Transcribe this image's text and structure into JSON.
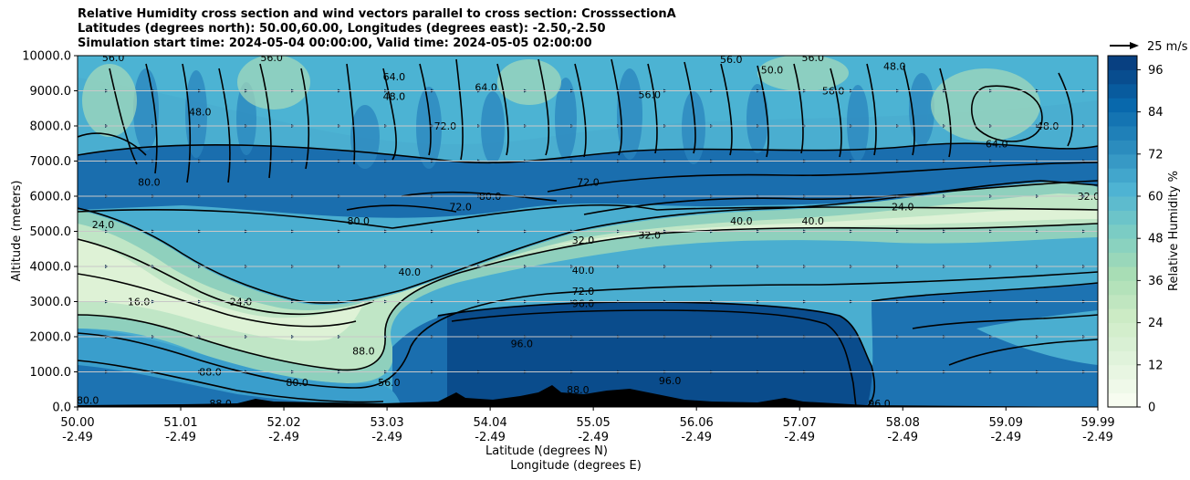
{
  "chart_data": {
    "type": "contour",
    "title_lines": [
      "Relative Humidity cross section and wind vectors parallel to cross section: CrosssectionA",
      "Latitudes (degrees north): 50.00,60.00, Longitudes (degrees east): -2.50,-2.50",
      "Simulation start time: 2024-05-04 00:00:00, Valid time: 2024-05-05 02:00:00"
    ],
    "ylabel": "Altitude (meters)",
    "xlabel_lat": "Latitude (degrees N)",
    "xlabel_lon": "Longitude (degrees E)",
    "ylim": [
      0,
      10000
    ],
    "yticks": [
      "0.0",
      "1000.0",
      "2000.0",
      "3000.0",
      "4000.0",
      "5000.0",
      "6000.0",
      "7000.0",
      "8000.0",
      "9000.0",
      "10000.0"
    ],
    "xticks_lat": [
      "50.00",
      "51.01",
      "52.02",
      "53.03",
      "54.04",
      "55.05",
      "56.06",
      "57.07",
      "58.08",
      "59.09",
      "59.99"
    ],
    "xticks_lon": [
      "-2.49",
      "-2.49",
      "-2.49",
      "-2.49",
      "-2.49",
      "-2.49",
      "-2.49",
      "-2.49",
      "-2.49",
      "-2.49",
      "-2.49"
    ],
    "colorbar_label": "Relative Humidity %",
    "colorbar_ticks": [
      "0",
      "12",
      "24",
      "36",
      "48",
      "60",
      "72",
      "84",
      "96"
    ],
    "colorbar_range": [
      0,
      100
    ],
    "quiver_key": "25 m/s",
    "contour_labels": [
      {
        "text": "56.0",
        "lat": 50.35,
        "alt": 9950
      },
      {
        "text": "56.0",
        "lat": 51.9,
        "alt": 9950
      },
      {
        "text": "64.0",
        "lat": 53.1,
        "alt": 9400
      },
      {
        "text": "64.0",
        "lat": 54.0,
        "alt": 9100
      },
      {
        "text": "48.0",
        "lat": 53.1,
        "alt": 8850
      },
      {
        "text": "72.0",
        "lat": 53.6,
        "alt": 8000
      },
      {
        "text": "56.0",
        "lat": 55.6,
        "alt": 8900
      },
      {
        "text": "56.0",
        "lat": 56.4,
        "alt": 9900
      },
      {
        "text": "50.0",
        "lat": 56.8,
        "alt": 9600
      },
      {
        "text": "56.0",
        "lat": 57.2,
        "alt": 9950
      },
      {
        "text": "56.0",
        "lat": 57.4,
        "alt": 9000
      },
      {
        "text": "48.0",
        "lat": 58.0,
        "alt": 9700
      },
      {
        "text": "48.0",
        "lat": 59.5,
        "alt": 8000
      },
      {
        "text": "64.0",
        "lat": 59.0,
        "alt": 7500
      },
      {
        "text": "48.0",
        "lat": 51.2,
        "alt": 8400
      },
      {
        "text": "80.0",
        "lat": 50.7,
        "alt": 6400
      },
      {
        "text": "80.0",
        "lat": 54.04,
        "alt": 6000
      },
      {
        "text": "72.0",
        "lat": 53.75,
        "alt": 5700
      },
      {
        "text": "72.0",
        "lat": 55.0,
        "alt": 6400
      },
      {
        "text": "80.0",
        "lat": 52.75,
        "alt": 5300
      },
      {
        "text": "40.0",
        "lat": 56.5,
        "alt": 5300
      },
      {
        "text": "40.0",
        "lat": 57.2,
        "alt": 5300
      },
      {
        "text": "32.0",
        "lat": 54.95,
        "alt": 4750
      },
      {
        "text": "32.0",
        "lat": 55.6,
        "alt": 4900
      },
      {
        "text": "24.0",
        "lat": 50.25,
        "alt": 5200
      },
      {
        "text": "24.0",
        "lat": 58.08,
        "alt": 5700
      },
      {
        "text": "32.0",
        "lat": 59.9,
        "alt": 6000
      },
      {
        "text": "40.0",
        "lat": 53.25,
        "alt": 3850
      },
      {
        "text": "40.0",
        "lat": 54.95,
        "alt": 3900
      },
      {
        "text": "72.0",
        "lat": 54.95,
        "alt": 3300
      },
      {
        "text": "96.0",
        "lat": 54.95,
        "alt": 2950
      },
      {
        "text": "24.0",
        "lat": 51.6,
        "alt": 3000
      },
      {
        "text": "16.0",
        "lat": 50.6,
        "alt": 3000
      },
      {
        "text": "88.0",
        "lat": 52.8,
        "alt": 1600
      },
      {
        "text": "96.0",
        "lat": 54.35,
        "alt": 1800
      },
      {
        "text": "88.0",
        "lat": 51.3,
        "alt": 1000
      },
      {
        "text": "80.0",
        "lat": 52.15,
        "alt": 700
      },
      {
        "text": "56.0",
        "lat": 53.05,
        "alt": 700
      },
      {
        "text": "88.0",
        "lat": 54.9,
        "alt": 500
      },
      {
        "text": "96.0",
        "lat": 55.8,
        "alt": 750
      },
      {
        "text": "96.0",
        "lat": 57.85,
        "alt": 100
      },
      {
        "text": "80.0",
        "lat": 50.1,
        "alt": 200
      },
      {
        "text": "88.0",
        "lat": 51.4,
        "alt": 100
      }
    ]
  }
}
